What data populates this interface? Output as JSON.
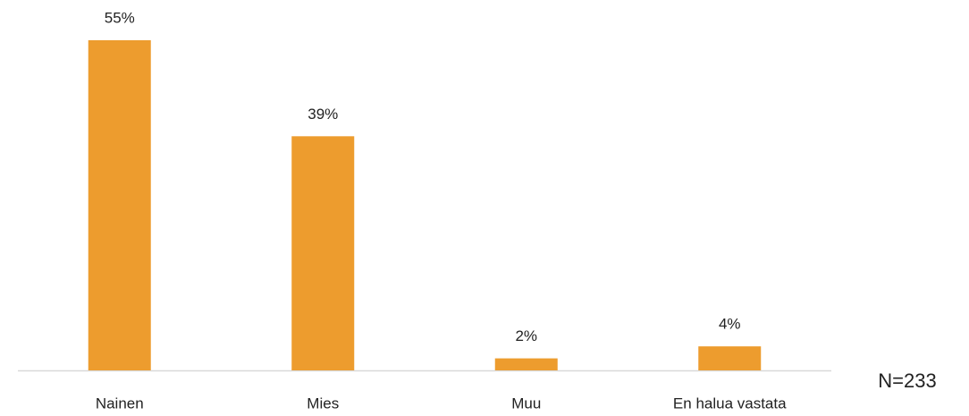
{
  "chart_data": {
    "type": "bar",
    "categories": [
      "Nainen",
      "Mies",
      "Muu",
      "En halua vastata"
    ],
    "values": [
      55,
      39,
      2,
      4
    ],
    "value_labels": [
      "55%",
      "39%",
      "2%",
      "4%"
    ],
    "color": "#ED9C2E",
    "annotation": "N=233"
  }
}
